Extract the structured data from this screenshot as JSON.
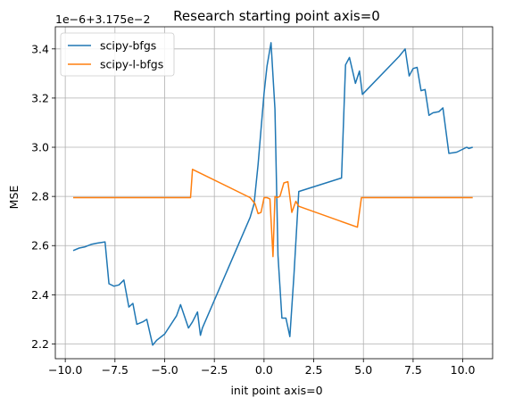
{
  "chart_data": {
    "type": "line",
    "title": "Research starting point axis=0",
    "xlabel": "init point axis=0",
    "ylabel": "MSE",
    "y_offset_text": "1e−6+3.175e−2",
    "xlim": [
      -10.5,
      11.5
    ],
    "ylim": [
      2.14,
      3.49
    ],
    "xticks": [
      -10.0,
      -7.5,
      -5.0,
      -2.5,
      0.0,
      2.5,
      5.0,
      7.5,
      10.0
    ],
    "xtick_labels": [
      "−10.0",
      "−7.5",
      "−5.0",
      "−2.5",
      "0.0",
      "2.5",
      "5.0",
      "7.5",
      "10.0"
    ],
    "yticks": [
      2.2,
      2.4,
      2.6,
      2.8,
      3.0,
      3.2,
      3.4
    ],
    "ytick_labels": [
      "2.2",
      "2.4",
      "2.6",
      "2.8",
      "3.0",
      "3.2",
      "3.4"
    ],
    "grid": true,
    "legend_position": "top-left",
    "series": [
      {
        "name": "scipy-bfgs",
        "color": "#1f77b4",
        "x": [
          -9.6,
          -9.3,
          -9.0,
          -8.7,
          -8.4,
          -8.0,
          -7.8,
          -7.55,
          -7.3,
          -7.05,
          -6.8,
          -6.6,
          -6.4,
          -6.1,
          -5.9,
          -5.6,
          -5.4,
          -5.0,
          -4.4,
          -4.2,
          -3.8,
          -3.6,
          -3.35,
          -3.2,
          -3.1,
          -0.7,
          -0.5,
          -0.3,
          0.0,
          0.15,
          0.35,
          0.55,
          0.7,
          0.9,
          1.1,
          1.3,
          1.5,
          1.75,
          3.9,
          4.1,
          4.3,
          4.6,
          4.8,
          4.95,
          6.8,
          7.1,
          7.3,
          7.5,
          7.7,
          7.9,
          8.1,
          8.3,
          8.5,
          8.8,
          9.0,
          9.3,
          9.7,
          10.2,
          10.3,
          10.5
        ],
        "y": [
          2.58,
          2.59,
          2.595,
          2.605,
          2.61,
          2.615,
          2.445,
          2.435,
          2.44,
          2.46,
          2.35,
          2.365,
          2.28,
          2.29,
          2.3,
          2.195,
          2.215,
          2.24,
          2.315,
          2.36,
          2.265,
          2.29,
          2.33,
          2.235,
          2.265,
          2.715,
          2.77,
          2.93,
          3.22,
          3.33,
          3.425,
          3.155,
          2.56,
          2.305,
          2.305,
          2.23,
          2.475,
          2.82,
          2.875,
          3.335,
          3.365,
          3.26,
          3.31,
          3.215,
          3.37,
          3.4,
          3.29,
          3.32,
          3.325,
          3.23,
          3.235,
          3.13,
          3.14,
          3.145,
          3.16,
          2.975,
          2.98,
          3.0,
          2.995,
          3.0
        ]
      },
      {
        "name": "scipy-l-bfgs",
        "color": "#ff7f0e",
        "x": [
          -9.6,
          -3.7,
          -3.6,
          -0.7,
          -0.6,
          -0.45,
          -0.3,
          -0.15,
          0.0,
          0.15,
          0.3,
          0.45,
          0.55,
          0.65,
          0.8,
          1.0,
          1.2,
          1.4,
          1.6,
          1.75,
          4.7,
          4.9,
          10.5
        ],
        "y": [
          2.795,
          2.795,
          2.91,
          2.795,
          2.785,
          2.77,
          2.73,
          2.735,
          2.795,
          2.795,
          2.79,
          2.555,
          2.8,
          2.795,
          2.8,
          2.855,
          2.86,
          2.735,
          2.78,
          2.76,
          2.675,
          2.795,
          2.795
        ]
      }
    ]
  }
}
